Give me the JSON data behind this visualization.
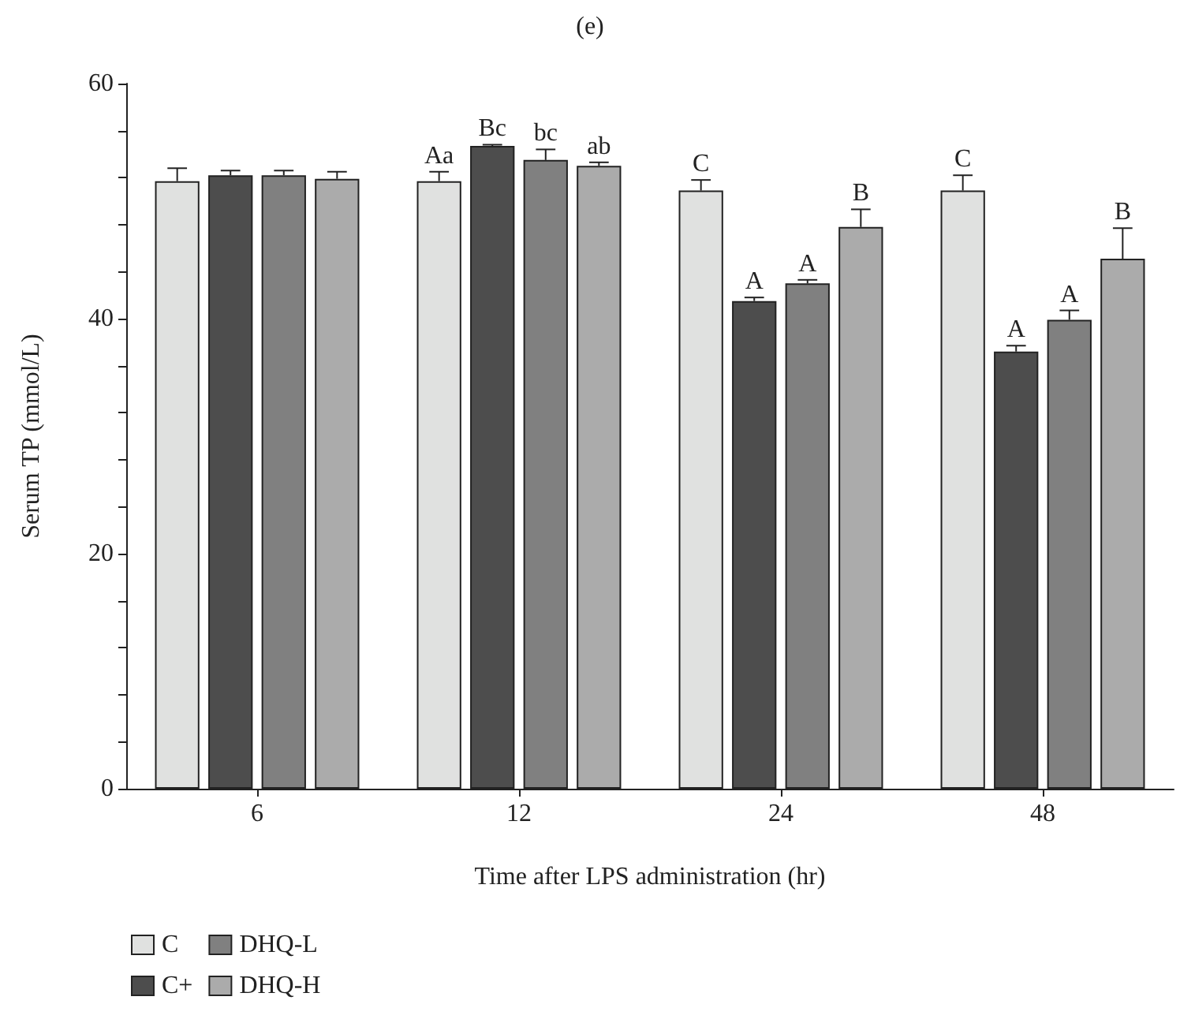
{
  "chart_data": {
    "type": "bar",
    "title": "(e)",
    "xlabel": "Time after LPS administration (hr)",
    "ylabel": "Serum TP (mmol/L)",
    "categories": [
      "6",
      "12",
      "24",
      "48"
    ],
    "series": [
      {
        "name": "C",
        "color": "#e0e1e0",
        "values": [
          51.7,
          51.7,
          50.9,
          50.9
        ],
        "errors": [
          1.1,
          0.8,
          0.9,
          1.3
        ],
        "value_labels": [
          null,
          "Aa",
          "C",
          "C"
        ]
      },
      {
        "name": "C+",
        "color": "#4d4d4d",
        "values": [
          52.2,
          54.7,
          41.5,
          37.2
        ],
        "errors": [
          0.4,
          0.1,
          0.3,
          0.5
        ],
        "value_labels": [
          null,
          "Bc",
          "A",
          "A"
        ]
      },
      {
        "name": "DHQ-L",
        "color": "#808080",
        "values": [
          52.2,
          53.5,
          43.0,
          39.9
        ],
        "errors": [
          0.4,
          0.9,
          0.3,
          0.8
        ],
        "value_labels": [
          null,
          "bc",
          "A",
          "A"
        ]
      },
      {
        "name": "DHQ-H",
        "color": "#ababab",
        "values": [
          51.9,
          53.0,
          47.8,
          45.1
        ],
        "errors": [
          0.6,
          0.3,
          1.5,
          2.6
        ],
        "value_labels": [
          null,
          "ab",
          "B",
          "B"
        ]
      }
    ],
    "ylim": [
      0,
      60
    ],
    "yticks": [
      0,
      {
        "value": 4,
        "label": null
      },
      {
        "value": 8,
        "label": null
      },
      {
        "value": 12,
        "label": null
      },
      {
        "value": 16,
        "label": null
      },
      20,
      {
        "value": 24,
        "label": null
      },
      {
        "value": 28,
        "label": null
      },
      {
        "value": 32,
        "label": null
      },
      {
        "value": 36,
        "label": null
      },
      40,
      {
        "value": 44,
        "label": null
      },
      {
        "value": 48,
        "label": null
      },
      {
        "value": 52,
        "label": null
      },
      {
        "value": 56,
        "label": null
      },
      60
    ],
    "grid": false,
    "legend": "bottom left"
  }
}
